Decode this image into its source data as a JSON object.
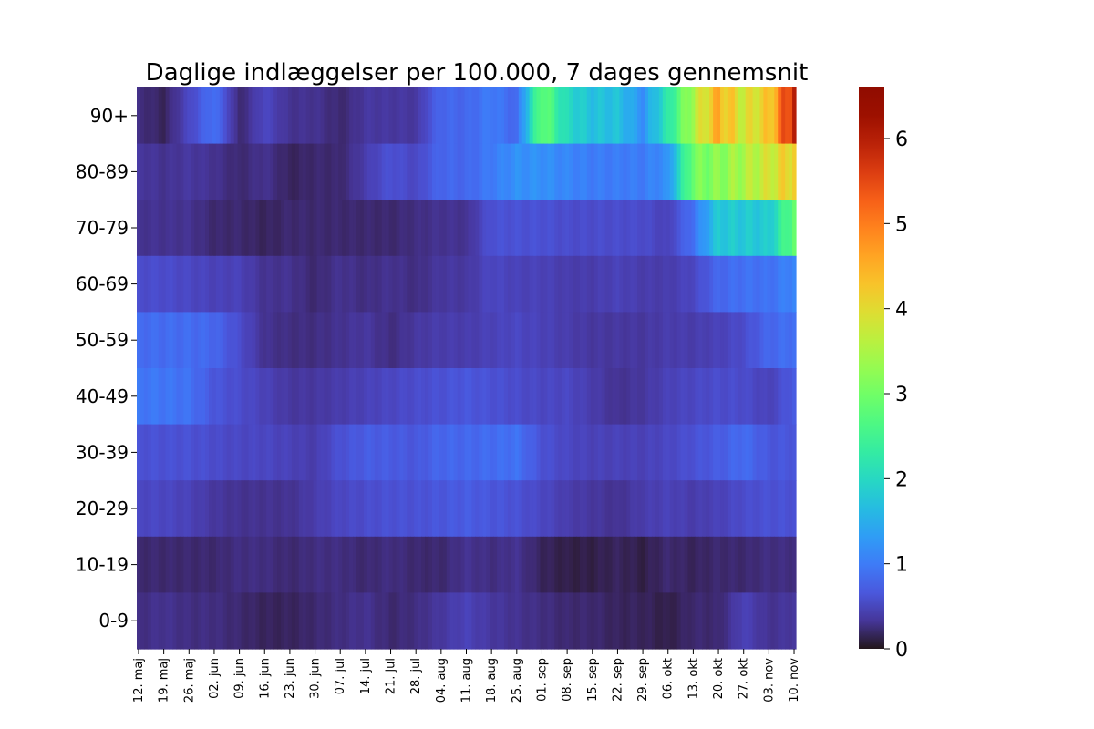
{
  "chart_data": {
    "type": "heatmap",
    "title": "Daglige indlæggelser per 100.000, 7 dages gennemsnit",
    "colormap": "turbo",
    "value_range": [
      0,
      6.6
    ],
    "colorbar_ticks": [
      0,
      1,
      2,
      3,
      4,
      5,
      6
    ],
    "rows": [
      "90+",
      "80-89",
      "70-79",
      "60-69",
      "50-59",
      "40-49",
      "30-39",
      "20-29",
      "10-19",
      "0-9"
    ],
    "x_tick_labels": [
      "12. maj",
      "19. maj",
      "26. maj",
      "02. jun",
      "09. jun",
      "16. jun",
      "23. jun",
      "30. jun",
      "07. jul",
      "14. jul",
      "21. jul",
      "28. jul",
      "04. aug",
      "11. aug",
      "18. aug",
      "25. aug",
      "01. sep",
      "08. sep",
      "15. sep",
      "22. sep",
      "29. sep",
      "06. okt",
      "13. okt",
      "20. okt",
      "27. okt",
      "03. nov",
      "10. nov"
    ],
    "weekly_values": {
      "90+": [
        0.25,
        0.15,
        0.5,
        0.9,
        0.2,
        0.5,
        0.3,
        0.3,
        0.2,
        0.35,
        0.35,
        0.35,
        0.8,
        0.8,
        1.0,
        0.8,
        2.9,
        2.0,
        1.7,
        1.7,
        1.2,
        2.2,
        3.5,
        4.5,
        3.8,
        4.2,
        6.0
      ],
      "80-89": [
        0.35,
        0.3,
        0.35,
        0.3,
        0.2,
        0.3,
        0.15,
        0.2,
        0.2,
        0.4,
        0.6,
        0.5,
        0.8,
        0.8,
        1.0,
        1.2,
        1.2,
        1.1,
        1.0,
        1.0,
        1.0,
        1.2,
        3.0,
        3.2,
        3.5,
        3.8,
        4.2
      ],
      "70-79": [
        0.3,
        0.3,
        0.3,
        0.2,
        0.2,
        0.15,
        0.2,
        0.2,
        0.2,
        0.2,
        0.2,
        0.25,
        0.3,
        0.3,
        0.6,
        0.6,
        0.6,
        0.55,
        0.55,
        0.55,
        0.55,
        0.45,
        0.9,
        1.8,
        1.8,
        1.8,
        2.9
      ],
      "60-69": [
        0.55,
        0.55,
        0.5,
        0.45,
        0.45,
        0.3,
        0.3,
        0.2,
        0.3,
        0.25,
        0.3,
        0.25,
        0.35,
        0.35,
        0.5,
        0.45,
        0.45,
        0.4,
        0.4,
        0.45,
        0.4,
        0.4,
        0.5,
        0.8,
        0.9,
        0.9,
        1.1
      ],
      "50-59": [
        0.85,
        0.85,
        0.85,
        0.8,
        0.55,
        0.3,
        0.25,
        0.25,
        0.3,
        0.35,
        0.25,
        0.35,
        0.4,
        0.4,
        0.45,
        0.5,
        0.45,
        0.4,
        0.35,
        0.35,
        0.35,
        0.4,
        0.4,
        0.45,
        0.55,
        0.8,
        0.9
      ],
      "40-49": [
        0.95,
        0.95,
        0.9,
        0.65,
        0.55,
        0.45,
        0.35,
        0.35,
        0.4,
        0.45,
        0.5,
        0.55,
        0.6,
        0.65,
        0.6,
        0.55,
        0.5,
        0.5,
        0.4,
        0.3,
        0.35,
        0.45,
        0.5,
        0.55,
        0.55,
        0.45,
        0.7
      ],
      "30-39": [
        0.6,
        0.6,
        0.6,
        0.55,
        0.5,
        0.5,
        0.45,
        0.4,
        0.6,
        0.7,
        0.7,
        0.65,
        0.8,
        0.8,
        0.85,
        0.9,
        0.6,
        0.5,
        0.45,
        0.45,
        0.45,
        0.5,
        0.6,
        0.7,
        0.85,
        0.65,
        0.65
      ],
      "20-29": [
        0.5,
        0.5,
        0.45,
        0.35,
        0.3,
        0.3,
        0.3,
        0.4,
        0.5,
        0.55,
        0.6,
        0.6,
        0.65,
        0.7,
        0.65,
        0.6,
        0.5,
        0.4,
        0.35,
        0.3,
        0.4,
        0.45,
        0.4,
        0.45,
        0.55,
        0.6,
        0.6
      ],
      "10-19": [
        0.2,
        0.2,
        0.2,
        0.2,
        0.25,
        0.25,
        0.2,
        0.25,
        0.25,
        0.2,
        0.25,
        0.2,
        0.2,
        0.3,
        0.25,
        0.3,
        0.15,
        0.1,
        0.1,
        0.15,
        0.1,
        0.2,
        0.15,
        0.2,
        0.2,
        0.25,
        0.25
      ],
      "0-9": [
        0.25,
        0.3,
        0.25,
        0.25,
        0.2,
        0.15,
        0.15,
        0.2,
        0.25,
        0.3,
        0.2,
        0.25,
        0.35,
        0.45,
        0.35,
        0.3,
        0.25,
        0.2,
        0.2,
        0.15,
        0.15,
        0.1,
        0.2,
        0.2,
        0.45,
        0.3,
        0.35
      ]
    }
  }
}
